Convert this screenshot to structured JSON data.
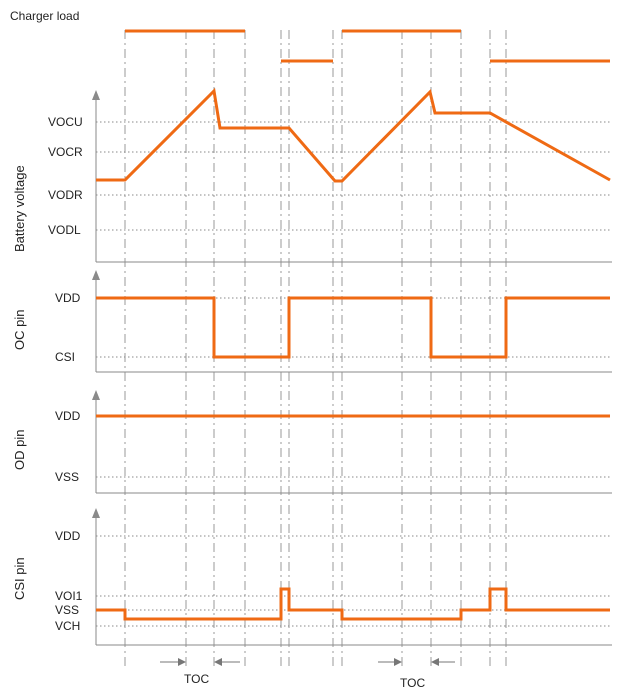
{
  "header": {
    "charger_load": "Charger load"
  },
  "panels": {
    "battery": {
      "title": "Battery voltage",
      "levels": {
        "vocu": "VOCU",
        "vocr": "VOCR",
        "vodr": "VODR",
        "vodl": "VODL"
      }
    },
    "oc": {
      "title": "OC pin",
      "levels": {
        "vdd": "VDD",
        "csi": "CSI"
      }
    },
    "od": {
      "title": "OD pin",
      "levels": {
        "vdd": "VDD",
        "vss": "VSS"
      }
    },
    "csi": {
      "title": "CSI pin",
      "levels": {
        "vdd": "VDD",
        "voi1": "VOI1",
        "vss": "VSS",
        "vch": "VCH"
      }
    }
  },
  "timing": {
    "toc_1": "TOC",
    "toc_2": "TOC"
  },
  "colors": {
    "signal": "#ef6a14",
    "grid": "#8a8a8a"
  }
}
